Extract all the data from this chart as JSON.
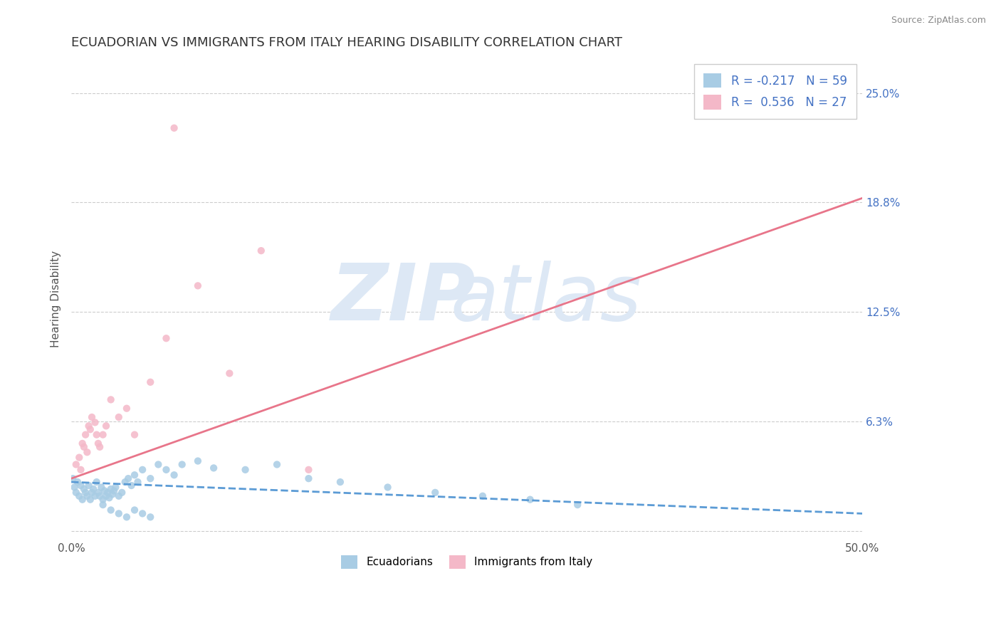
{
  "title": "ECUADORIAN VS IMMIGRANTS FROM ITALY HEARING DISABILITY CORRELATION CHART",
  "source": "Source: ZipAtlas.com",
  "ylabel": "Hearing Disability",
  "xlim": [
    0.0,
    0.5
  ],
  "ylim": [
    -0.005,
    0.27
  ],
  "yticks": [
    0.0,
    0.0625,
    0.125,
    0.1875,
    0.25
  ],
  "ytick_labels": [
    "",
    "6.3%",
    "12.5%",
    "18.8%",
    "25.0%"
  ],
  "xticks": [
    0.0,
    0.1,
    0.2,
    0.3,
    0.4,
    0.5
  ],
  "xtick_labels": [
    "0.0%",
    "",
    "",
    "",
    "",
    "50.0%"
  ],
  "title_fontsize": 13,
  "label_fontsize": 11,
  "tick_fontsize": 11,
  "blue_color": "#a8cce4",
  "pink_color": "#f4b8c8",
  "blue_line_color": "#5b9bd5",
  "pink_line_color": "#e8758a",
  "text_color": "#4472c4",
  "R_blue": -0.217,
  "N_blue": 59,
  "R_pink": 0.536,
  "N_pink": 27,
  "legend_blue_label": "Ecuadorians",
  "legend_pink_label": "Immigrants from Italy",
  "blue_scatter_x": [
    0.001,
    0.002,
    0.003,
    0.004,
    0.005,
    0.006,
    0.007,
    0.008,
    0.009,
    0.01,
    0.011,
    0.012,
    0.013,
    0.014,
    0.015,
    0.016,
    0.017,
    0.018,
    0.019,
    0.02,
    0.021,
    0.022,
    0.023,
    0.024,
    0.025,
    0.026,
    0.027,
    0.028,
    0.03,
    0.032,
    0.034,
    0.036,
    0.038,
    0.04,
    0.042,
    0.045,
    0.05,
    0.055,
    0.06,
    0.065,
    0.07,
    0.08,
    0.09,
    0.11,
    0.13,
    0.15,
    0.17,
    0.2,
    0.23,
    0.26,
    0.29,
    0.32,
    0.02,
    0.025,
    0.03,
    0.035,
    0.04,
    0.045,
    0.05
  ],
  "blue_scatter_y": [
    0.03,
    0.025,
    0.022,
    0.028,
    0.02,
    0.026,
    0.018,
    0.024,
    0.022,
    0.02,
    0.026,
    0.018,
    0.022,
    0.024,
    0.02,
    0.028,
    0.022,
    0.02,
    0.025,
    0.018,
    0.023,
    0.02,
    0.022,
    0.019,
    0.024,
    0.021,
    0.023,
    0.025,
    0.02,
    0.022,
    0.028,
    0.03,
    0.026,
    0.032,
    0.028,
    0.035,
    0.03,
    0.038,
    0.035,
    0.032,
    0.038,
    0.04,
    0.036,
    0.035,
    0.038,
    0.03,
    0.028,
    0.025,
    0.022,
    0.02,
    0.018,
    0.015,
    0.015,
    0.012,
    0.01,
    0.008,
    0.012,
    0.01,
    0.008
  ],
  "pink_scatter_x": [
    0.003,
    0.005,
    0.006,
    0.007,
    0.008,
    0.009,
    0.01,
    0.011,
    0.012,
    0.013,
    0.015,
    0.016,
    0.017,
    0.018,
    0.02,
    0.022,
    0.025,
    0.03,
    0.035,
    0.04,
    0.05,
    0.06,
    0.08,
    0.1,
    0.12,
    0.15,
    0.065
  ],
  "pink_scatter_y": [
    0.038,
    0.042,
    0.035,
    0.05,
    0.048,
    0.055,
    0.045,
    0.06,
    0.058,
    0.065,
    0.062,
    0.055,
    0.05,
    0.048,
    0.055,
    0.06,
    0.075,
    0.065,
    0.07,
    0.055,
    0.085,
    0.11,
    0.14,
    0.09,
    0.16,
    0.035,
    0.23
  ],
  "pink_line_x0": 0.0,
  "pink_line_y0": 0.03,
  "pink_line_x1": 0.5,
  "pink_line_y1": 0.19,
  "blue_line_x0": 0.0,
  "blue_line_y0": 0.028,
  "blue_line_x1": 0.5,
  "blue_line_y1": 0.01
}
